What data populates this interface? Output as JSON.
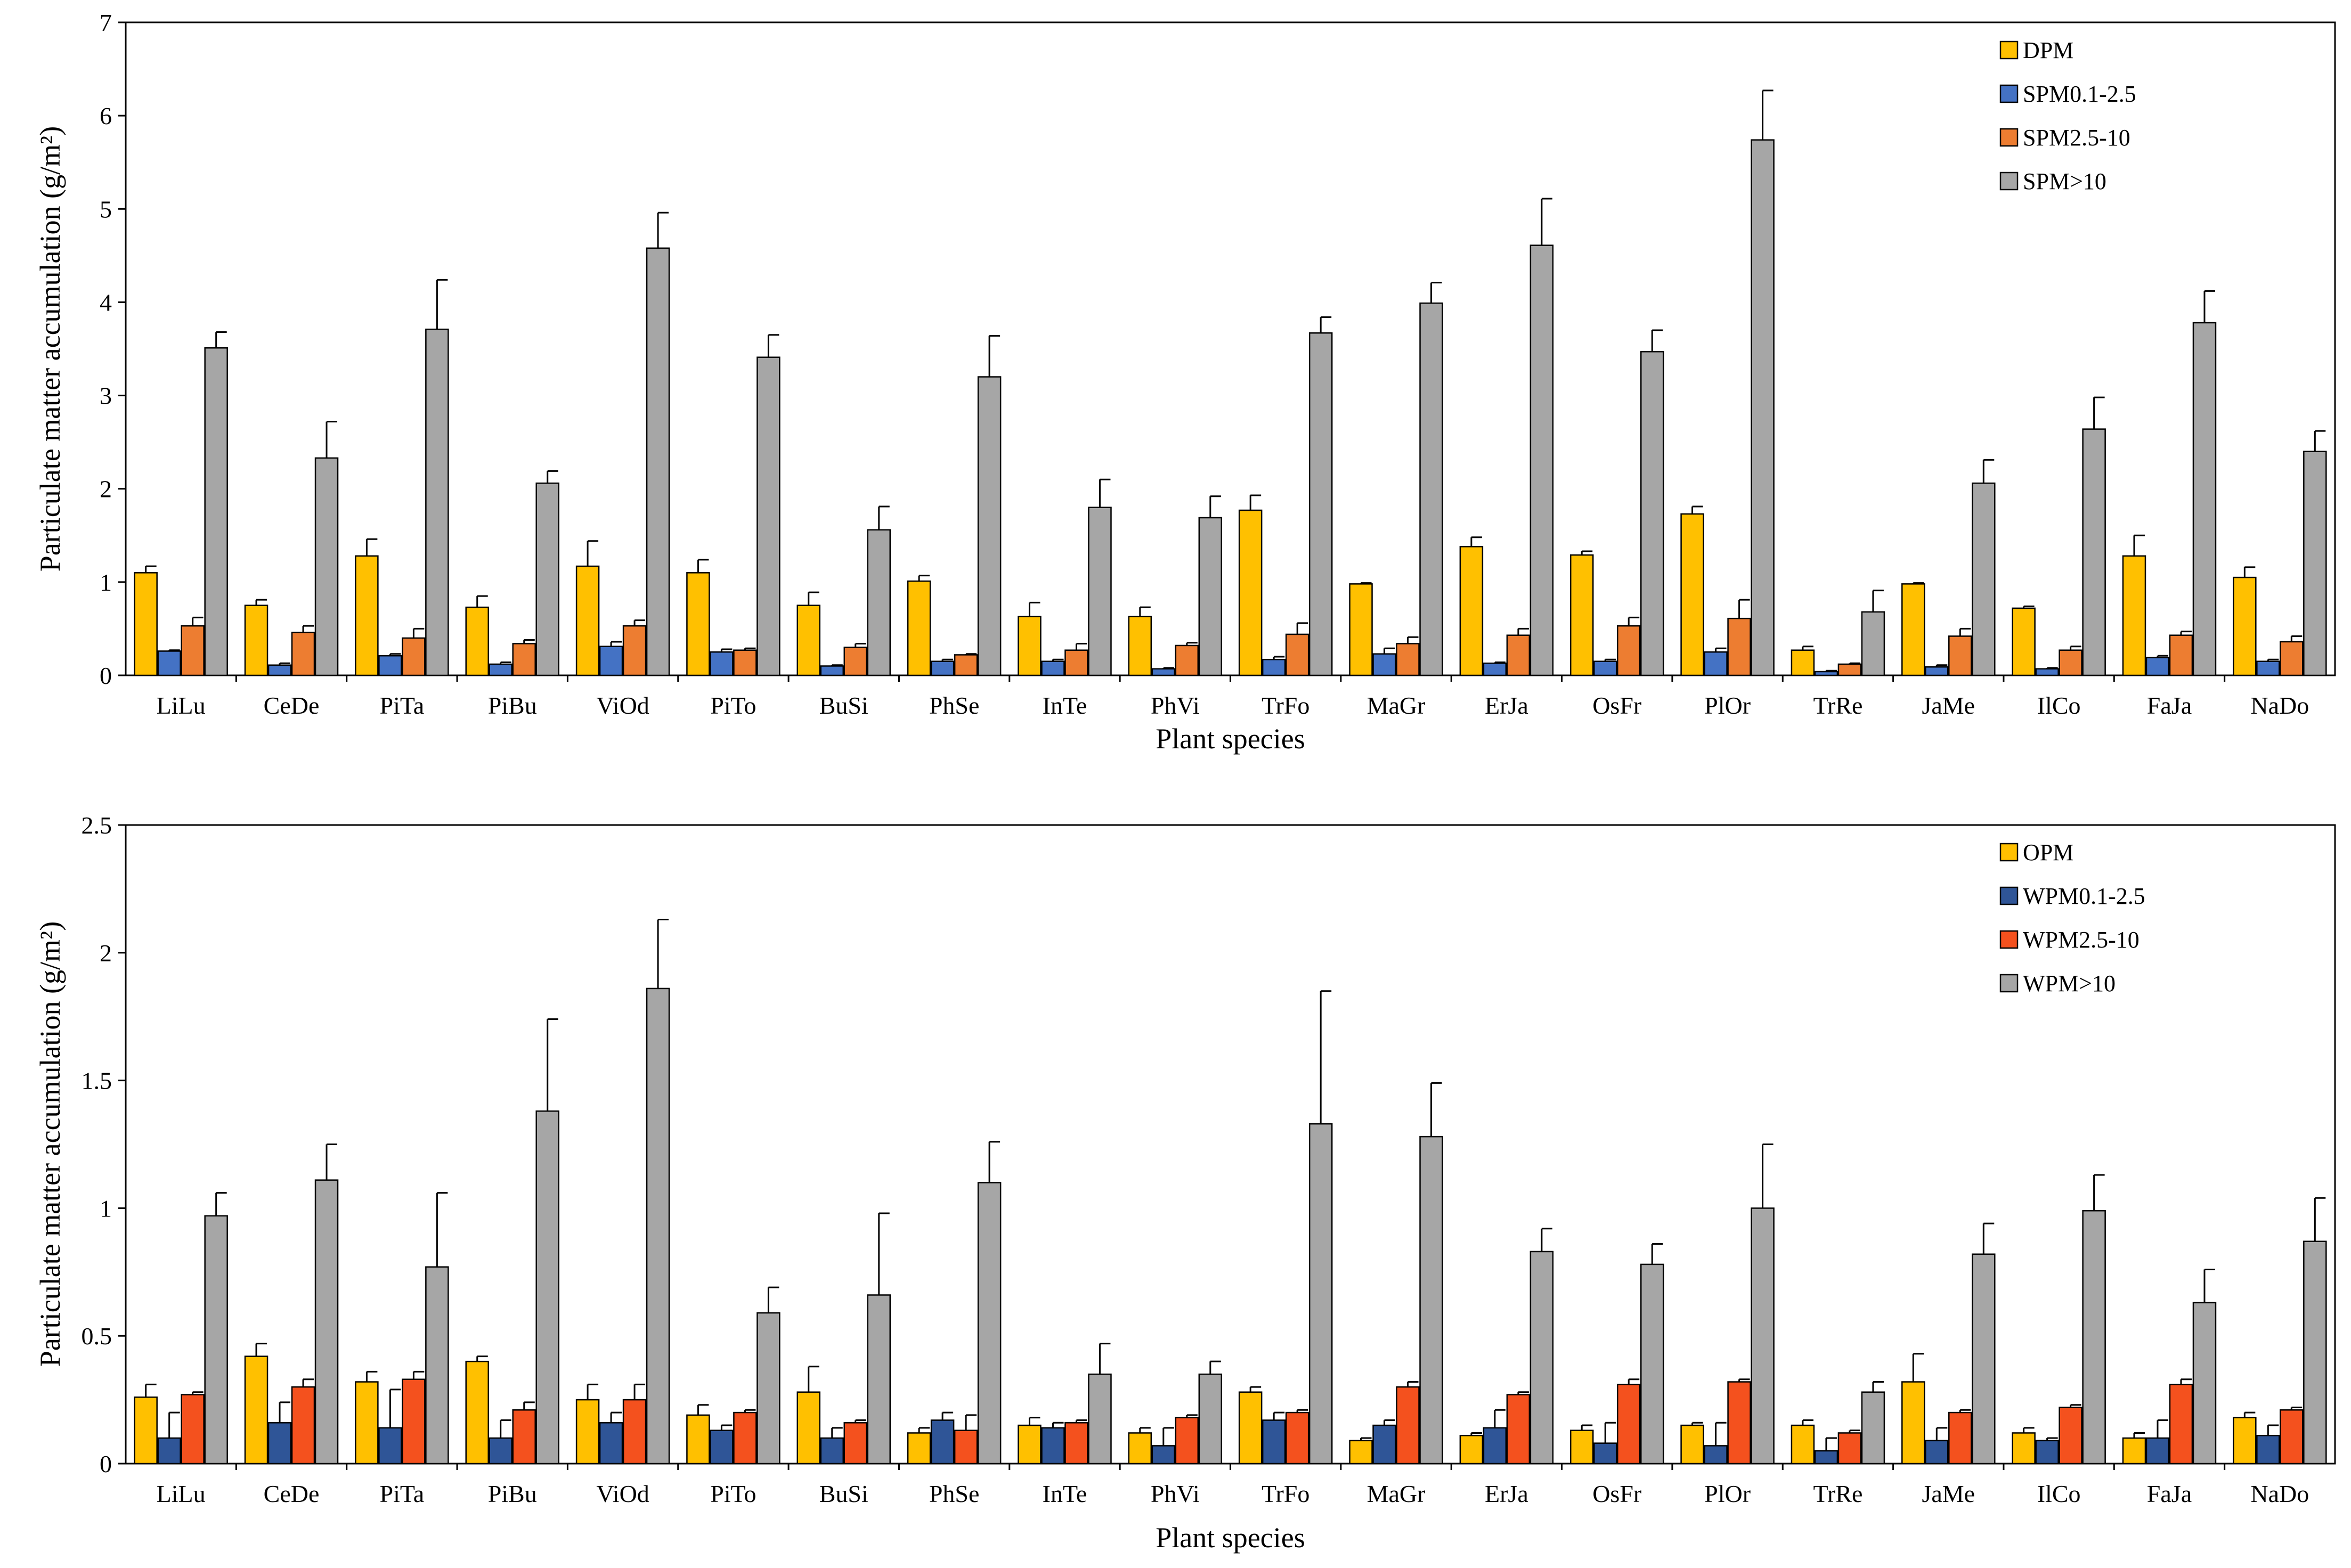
{
  "colors": {
    "yellow": "#FFC000",
    "blue": "#4472C4",
    "blue_dark": "#2F5597",
    "orange": "#ED7D31",
    "orange_dark": "#F4511E",
    "grey": "#A6A6A6"
  },
  "chart_data": [
    {
      "type": "bar",
      "xlabel": "Plant species",
      "ylabel": "Particulate matter accumulation (g/m²)",
      "ylim": [
        0,
        7
      ],
      "yticks": [
        "0",
        "1",
        "2",
        "3",
        "4",
        "5",
        "6",
        "7"
      ],
      "legend_position": "top-right",
      "categories": [
        "LiLu",
        "CeDe",
        "PiTa",
        "PiBu",
        "ViOd",
        "PiTo",
        "BuSi",
        "PhSe",
        "InTe",
        "PhVi",
        "TrFo",
        "MaGr",
        "ErJa",
        "OsFr",
        "PlOr",
        "TrRe",
        "JaMe",
        "IlCo",
        "FaJa",
        "NaDo"
      ],
      "series": [
        {
          "name": "DPM",
          "color": "#FFC000",
          "values": [
            1.1,
            0.75,
            1.28,
            0.73,
            1.17,
            1.1,
            0.75,
            1.01,
            0.63,
            0.63,
            1.77,
            0.98,
            1.38,
            1.29,
            1.73,
            0.27,
            0.98,
            0.72,
            1.28,
            1.05
          ],
          "errors": [
            0.07,
            0.06,
            0.18,
            0.12,
            0.27,
            0.14,
            0.14,
            0.06,
            0.15,
            0.1,
            0.16,
            0.01,
            0.1,
            0.04,
            0.08,
            0.04,
            0.01,
            0.02,
            0.22,
            0.11
          ]
        },
        {
          "name": "SPM0.1-2.5",
          "color": "#4472C4",
          "values": [
            0.26,
            0.11,
            0.21,
            0.12,
            0.31,
            0.25,
            0.1,
            0.15,
            0.15,
            0.07,
            0.17,
            0.23,
            0.13,
            0.15,
            0.25,
            0.04,
            0.09,
            0.07,
            0.19,
            0.15
          ],
          "errors": [
            0.01,
            0.02,
            0.02,
            0.02,
            0.05,
            0.03,
            0.01,
            0.02,
            0.02,
            0.01,
            0.03,
            0.06,
            0.01,
            0.02,
            0.04,
            0.01,
            0.02,
            0.01,
            0.02,
            0.02
          ]
        },
        {
          "name": "SPM2.5-10",
          "color": "#ED7D31",
          "values": [
            0.53,
            0.46,
            0.4,
            0.34,
            0.53,
            0.27,
            0.3,
            0.22,
            0.27,
            0.32,
            0.44,
            0.34,
            0.43,
            0.53,
            0.61,
            0.12,
            0.42,
            0.27,
            0.43,
            0.36
          ],
          "errors": [
            0.09,
            0.07,
            0.1,
            0.04,
            0.06,
            0.02,
            0.04,
            0.01,
            0.07,
            0.03,
            0.12,
            0.07,
            0.07,
            0.09,
            0.2,
            0.01,
            0.08,
            0.04,
            0.04,
            0.06
          ]
        },
        {
          "name": "SPM>10",
          "color": "#A6A6A6",
          "values": [
            3.51,
            2.33,
            3.71,
            2.06,
            4.58,
            3.41,
            1.56,
            3.2,
            1.8,
            1.69,
            3.67,
            3.99,
            4.61,
            3.47,
            5.74,
            0.68,
            2.06,
            2.64,
            3.78,
            2.4
          ],
          "errors": [
            0.17,
            0.39,
            0.53,
            0.13,
            0.38,
            0.24,
            0.25,
            0.44,
            0.3,
            0.23,
            0.17,
            0.22,
            0.5,
            0.23,
            0.53,
            0.23,
            0.25,
            0.34,
            0.34,
            0.22
          ]
        }
      ]
    },
    {
      "type": "bar",
      "xlabel": "Plant species",
      "ylabel": "Particulate matter accumulation (g/m²)",
      "ylim": [
        0,
        2.5
      ],
      "yticks": [
        "0",
        "0.5",
        "1",
        "1.5",
        "2",
        "2.5"
      ],
      "legend_position": "top-right",
      "categories": [
        "LiLu",
        "CeDe",
        "PiTa",
        "PiBu",
        "ViOd",
        "PiTo",
        "BuSi",
        "PhSe",
        "InTe",
        "PhVi",
        "TrFo",
        "MaGr",
        "ErJa",
        "OsFr",
        "PlOr",
        "TrRe",
        "JaMe",
        "IlCo",
        "FaJa",
        "NaDo"
      ],
      "series": [
        {
          "name": "OPM",
          "color": "#FFC000",
          "values": [
            0.26,
            0.42,
            0.32,
            0.4,
            0.25,
            0.19,
            0.28,
            0.12,
            0.15,
            0.12,
            0.28,
            0.09,
            0.11,
            0.13,
            0.15,
            0.15,
            0.32,
            0.12,
            0.1,
            0.18
          ],
          "errors": [
            0.05,
            0.05,
            0.04,
            0.02,
            0.06,
            0.04,
            0.1,
            0.02,
            0.03,
            0.02,
            0.02,
            0.01,
            0.01,
            0.02,
            0.01,
            0.02,
            0.11,
            0.02,
            0.02,
            0.02
          ]
        },
        {
          "name": "WPM0.1-2.5",
          "color": "#2F5597",
          "values": [
            0.1,
            0.16,
            0.14,
            0.1,
            0.16,
            0.13,
            0.1,
            0.17,
            0.14,
            0.07,
            0.17,
            0.15,
            0.14,
            0.08,
            0.07,
            0.05,
            0.09,
            0.09,
            0.1,
            0.11
          ],
          "errors": [
            0.1,
            0.08,
            0.15,
            0.07,
            0.04,
            0.02,
            0.04,
            0.03,
            0.02,
            0.07,
            0.03,
            0.02,
            0.07,
            0.08,
            0.09,
            0.05,
            0.05,
            0.01,
            0.07,
            0.04
          ]
        },
        {
          "name": "WPM2.5-10",
          "color": "#F4511E",
          "values": [
            0.27,
            0.3,
            0.33,
            0.21,
            0.25,
            0.2,
            0.16,
            0.13,
            0.16,
            0.18,
            0.2,
            0.3,
            0.27,
            0.31,
            0.32,
            0.12,
            0.2,
            0.22,
            0.31,
            0.21
          ],
          "errors": [
            0.01,
            0.03,
            0.03,
            0.03,
            0.06,
            0.01,
            0.01,
            0.06,
            0.01,
            0.01,
            0.01,
            0.02,
            0.01,
            0.02,
            0.01,
            0.01,
            0.01,
            0.01,
            0.02,
            0.01
          ]
        },
        {
          "name": "WPM>10",
          "color": "#A6A6A6",
          "values": [
            0.97,
            1.11,
            0.77,
            1.38,
            1.86,
            0.59,
            0.66,
            1.1,
            0.35,
            0.35,
            1.33,
            1.28,
            0.83,
            0.78,
            1.0,
            0.28,
            0.82,
            0.99,
            0.63,
            0.87
          ],
          "errors": [
            0.09,
            0.14,
            0.29,
            0.36,
            0.27,
            0.1,
            0.32,
            0.16,
            0.12,
            0.05,
            0.52,
            0.21,
            0.09,
            0.08,
            0.25,
            0.04,
            0.12,
            0.14,
            0.13,
            0.17
          ]
        }
      ]
    }
  ]
}
